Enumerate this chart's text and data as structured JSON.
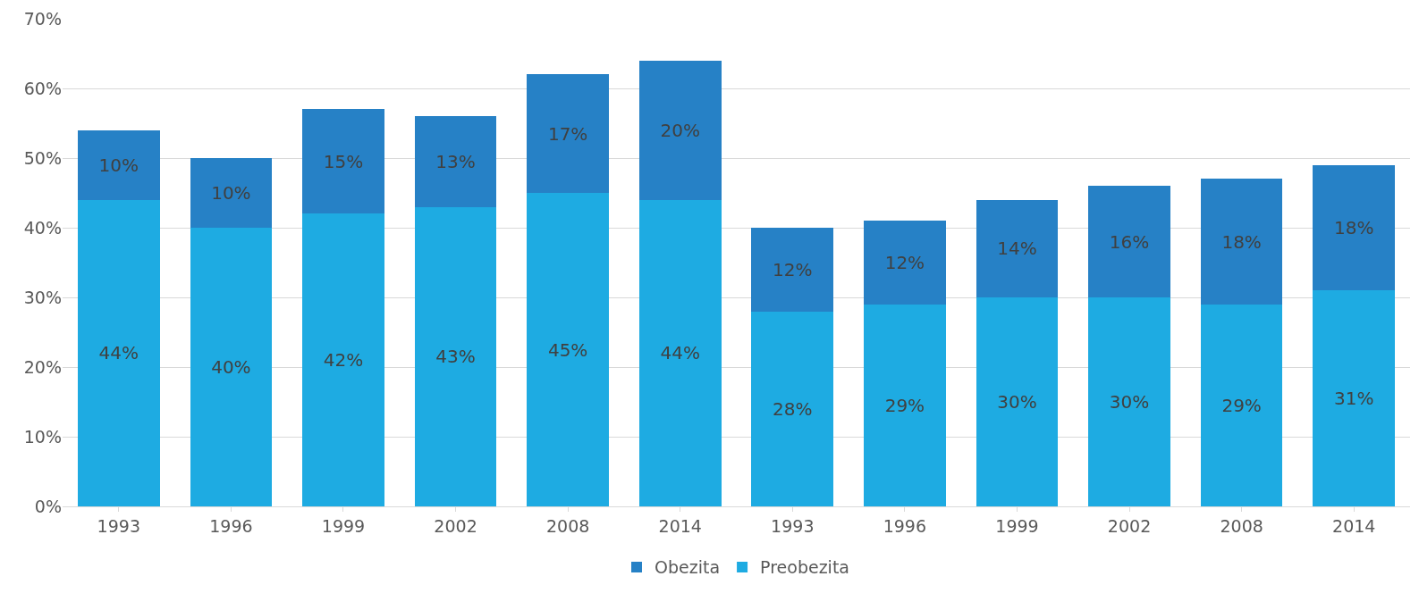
{
  "chart_data": {
    "type": "bar",
    "stacked": true,
    "categories": [
      "1993",
      "1996",
      "1999",
      "2002",
      "2008",
      "2014",
      "1993",
      "1996",
      "1999",
      "2002",
      "2008",
      "2014"
    ],
    "series": [
      {
        "name": "Preobezita",
        "color": "#1eabe2",
        "values": [
          44,
          40,
          42,
          43,
          45,
          44,
          28,
          29,
          30,
          30,
          29,
          31
        ],
        "value_labels": [
          "44%",
          "40%",
          "42%",
          "43%",
          "45%",
          "44%",
          "28%",
          "29%",
          "30%",
          "30%",
          "29%",
          "31%"
        ]
      },
      {
        "name": "Obezita",
        "color": "#2681c6",
        "values": [
          10,
          10,
          15,
          13,
          17,
          20,
          12,
          12,
          14,
          16,
          18,
          18
        ],
        "value_labels": [
          "10%",
          "10%",
          "15%",
          "13%",
          "17%",
          "20%",
          "12%",
          "12%",
          "14%",
          "16%",
          "18%",
          "18%"
        ]
      }
    ],
    "ylim": [
      0,
      70
    ],
    "yticks": [
      {
        "value": 0,
        "label": "0%"
      },
      {
        "value": 10,
        "label": "10%"
      },
      {
        "value": 20,
        "label": "20%"
      },
      {
        "value": 30,
        "label": "30%"
      },
      {
        "value": 40,
        "label": "40%"
      },
      {
        "value": 50,
        "label": "50%"
      },
      {
        "value": 60,
        "label": "60%"
      },
      {
        "value": 70,
        "label": "70%"
      }
    ],
    "grid": "y",
    "legend": "bottom"
  }
}
